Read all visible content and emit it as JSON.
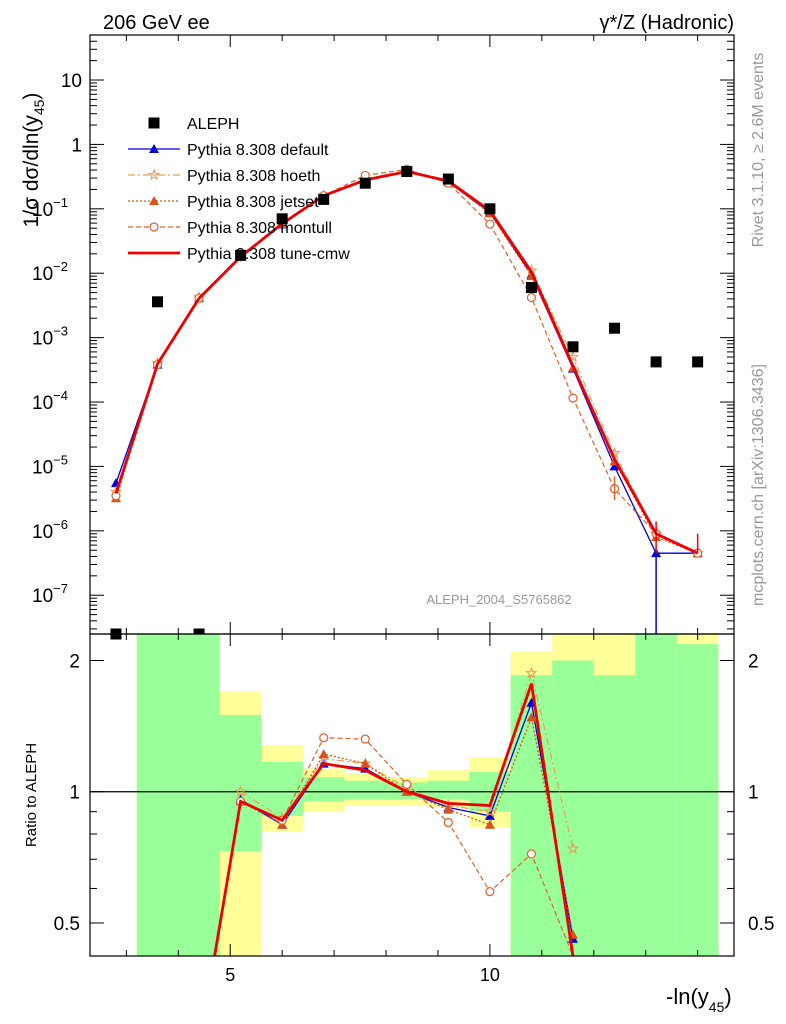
{
  "header": {
    "left": "206 GeV ee",
    "right": "γ*/Z (Hadronic)"
  },
  "watermark": "ALEPH_2004_S5765862",
  "side_labels": {
    "rivet": "Rivet 3.1.10, ≥ 2.6M events",
    "mcplots": "mcplots.cern.ch [arXiv:1306.3436]"
  },
  "chart_data": [
    {
      "type": "scatter",
      "panel": "main",
      "ylabel": "1/σ dσ/dln(y45)",
      "xlabel": "",
      "xlim": [
        2.3,
        14.7
      ],
      "ylim": [
        2.5e-08,
        50
      ],
      "yscale": "log",
      "y_ticks": [
        {
          "v": 1e-07,
          "label": "10",
          "exp": "−7"
        },
        {
          "v": 1e-06,
          "label": "10",
          "exp": "−6"
        },
        {
          "v": 1e-05,
          "label": "10",
          "exp": "−5"
        },
        {
          "v": 0.0001,
          "label": "10",
          "exp": "−4"
        },
        {
          "v": 0.001,
          "label": "10",
          "exp": "−3"
        },
        {
          "v": 0.01,
          "label": "10",
          "exp": "−2"
        },
        {
          "v": 0.1,
          "label": "10",
          "exp": "−1"
        },
        {
          "v": 1,
          "label": "1",
          "exp": ""
        },
        {
          "v": 10,
          "label": "10",
          "exp": ""
        }
      ],
      "legend_position": "top-left",
      "series": [
        {
          "name": "ALEPH",
          "color": "#000000",
          "style": "data",
          "x": [
            2.8,
            3.6,
            4.4,
            5.2,
            6.0,
            6.8,
            7.6,
            8.4,
            9.2,
            10.0,
            10.8,
            11.6,
            12.4,
            13.2,
            14.0
          ],
          "y": [
            0,
            0.0036,
            0,
            0.019,
            0.07,
            0.14,
            0.25,
            0.38,
            0.29,
            0.1,
            0.006,
            0.00072,
            0.0014,
            0.00042,
            0.00042
          ]
        },
        {
          "name": "Pythia 8.308 default",
          "color": "#0000dd",
          "style": "solid-triangle",
          "x": [
            2.8,
            3.6,
            4.4,
            5.2,
            6.0,
            6.8,
            7.6,
            8.4,
            9.2,
            10.0,
            10.8,
            11.6,
            12.4,
            13.2,
            14.0
          ],
          "y": [
            5.5e-06,
            0.00038,
            0.0041,
            0.018,
            0.057,
            0.16,
            0.28,
            0.38,
            0.26,
            0.088,
            0.0095,
            0.00033,
            1e-05,
            4.5e-07,
            4.5e-07
          ]
        },
        {
          "name": "Pythia 8.308 hoeth",
          "color": "#e69f55",
          "style": "dashdot-star",
          "x": [
            2.8,
            3.6,
            4.4,
            5.2,
            6.0,
            6.8,
            7.6,
            8.4,
            9.2,
            10.0,
            10.8,
            11.6,
            12.4,
            13.2,
            14.0
          ],
          "y": [
            4e-06,
            0.0004,
            0.0042,
            0.019,
            0.06,
            0.16,
            0.29,
            0.39,
            0.27,
            0.09,
            0.011,
            0.0005,
            1.6e-05,
            9e-07,
            4.5e-07
          ]
        },
        {
          "name": "Pythia 8.308 jetset",
          "color": "#d95319",
          "style": "dotted-triangle",
          "x": [
            2.8,
            3.6,
            4.4,
            5.2,
            6.0,
            6.8,
            7.6,
            8.4,
            9.2,
            10.0,
            10.8,
            11.6,
            12.4,
            13.2,
            14.0
          ],
          "y": [
            3.2e-06,
            0.00039,
            0.0041,
            0.018,
            0.058,
            0.16,
            0.28,
            0.38,
            0.26,
            0.085,
            0.009,
            0.00034,
            1.2e-05,
            8e-07,
            4.5e-07
          ]
        },
        {
          "name": "Pythia 8.308 montull",
          "color": "#e0602a",
          "style": "dashed-circle",
          "x": [
            2.8,
            3.6,
            4.4,
            5.2,
            6.0,
            6.8,
            7.6,
            8.4,
            9.2,
            10.0,
            10.8,
            11.6,
            12.4,
            13.2,
            14.0
          ],
          "y": [
            3.5e-06,
            0.00038,
            0.0041,
            0.018,
            0.06,
            0.16,
            0.33,
            0.41,
            0.25,
            0.058,
            0.0042,
            0.000115,
            4.5e-06,
            9e-07,
            4.5e-07
          ]
        },
        {
          "name": "Pythia 8.308 tune-cmw",
          "color": "#ee0000",
          "style": "thick-solid",
          "x": [
            2.8,
            3.6,
            4.4,
            5.2,
            6.0,
            6.8,
            7.6,
            8.4,
            9.2,
            10.0,
            10.8,
            11.6,
            12.4,
            13.2,
            14.0
          ],
          "y": [
            3.8e-06,
            0.00039,
            0.0041,
            0.018,
            0.059,
            0.16,
            0.28,
            0.38,
            0.27,
            0.093,
            0.0105,
            0.00036,
            1.3e-05,
            9e-07,
            4.5e-07
          ]
        }
      ]
    },
    {
      "type": "line",
      "panel": "ratio",
      "ylabel": "Ratio to ALEPH",
      "xlabel": "-ln(y45)",
      "xlim": [
        2.3,
        14.7
      ],
      "ylim": [
        0.42,
        2.3
      ],
      "yscale": "log",
      "x_ticks": [
        5,
        10
      ],
      "y_ticks": [
        0.5,
        1,
        2
      ],
      "uncertainty_bands": [
        {
          "x0": 3.2,
          "x1": 4.8,
          "yellow": [
            0.3,
            2.3
          ],
          "green": [
            0.3,
            2.3
          ]
        },
        {
          "x0": 4.8,
          "x1": 5.6,
          "yellow": [
            0.3,
            1.7
          ],
          "green": [
            0.73,
            1.5
          ]
        },
        {
          "x0": 5.6,
          "x1": 6.4,
          "yellow": [
            0.81,
            1.28
          ],
          "green": [
            0.88,
            1.17
          ]
        },
        {
          "x0": 6.4,
          "x1": 7.2,
          "yellow": [
            0.9,
            1.13
          ],
          "green": [
            0.95,
            1.08
          ]
        },
        {
          "x0": 7.2,
          "x1": 8.0,
          "yellow": [
            0.93,
            1.1
          ],
          "green": [
            0.96,
            1.06
          ]
        },
        {
          "x0": 8.0,
          "x1": 8.8,
          "yellow": [
            0.93,
            1.08
          ],
          "green": [
            0.96,
            1.05
          ]
        },
        {
          "x0": 8.8,
          "x1": 9.6,
          "yellow": [
            0.92,
            1.12
          ],
          "green": [
            0.96,
            1.06
          ]
        },
        {
          "x0": 9.6,
          "x1": 10.4,
          "yellow": [
            0.83,
            1.2
          ],
          "green": [
            0.9,
            1.11
          ]
        },
        {
          "x0": 10.4,
          "x1": 11.2,
          "yellow": [
            0.3,
            2.1
          ],
          "green": [
            0.3,
            1.85
          ]
        },
        {
          "x0": 11.2,
          "x1": 12.0,
          "yellow": [
            0.3,
            2.3
          ],
          "green": [
            0.3,
            2.0
          ]
        },
        {
          "x0": 12.0,
          "x1": 12.8,
          "yellow": [
            0.3,
            2.3
          ],
          "green": [
            0.3,
            1.85
          ]
        },
        {
          "x0": 12.8,
          "x1": 13.6,
          "yellow": [
            0.3,
            2.3
          ],
          "green": [
            0.3,
            2.3
          ]
        },
        {
          "x0": 13.6,
          "x1": 14.4,
          "yellow": [
            0.3,
            2.3
          ],
          "green": [
            0.3,
            2.18
          ]
        }
      ],
      "series": [
        {
          "name": "Pythia 8.308 default",
          "color": "#0000dd",
          "style": "solid-triangle",
          "x": [
            5.2,
            6.0,
            6.8,
            7.6,
            8.4,
            9.2,
            10.0,
            10.8,
            11.6
          ],
          "y": [
            0.96,
            0.84,
            1.16,
            1.13,
            1.0,
            0.92,
            0.88,
            1.6,
            0.46
          ]
        },
        {
          "name": "Pythia 8.308 hoeth",
          "color": "#e69f55",
          "style": "dashdot-star",
          "x": [
            5.2,
            6.0,
            6.8,
            7.6,
            8.4,
            9.2,
            10.0,
            10.8,
            11.6
          ],
          "y": [
            1.0,
            0.87,
            1.19,
            1.16,
            1.02,
            0.93,
            0.9,
            1.87,
            0.74
          ]
        },
        {
          "name": "Pythia 8.308 jetset",
          "color": "#d95319",
          "style": "dotted-triangle",
          "x": [
            5.2,
            6.0,
            6.8,
            7.6,
            8.4,
            9.2,
            10.0,
            10.8,
            11.6
          ],
          "y": [
            0.95,
            0.84,
            1.22,
            1.16,
            1.0,
            0.91,
            0.84,
            1.48,
            0.47
          ]
        },
        {
          "name": "Pythia 8.308 montull",
          "color": "#e0602a",
          "style": "dashed-circle",
          "x": [
            5.2,
            6.0,
            6.8,
            7.6,
            8.4,
            9.2,
            10.0,
            10.8,
            11.6
          ],
          "y": [
            0.95,
            0.86,
            1.33,
            1.32,
            1.04,
            0.85,
            0.59,
            0.72,
            0.16
          ]
        },
        {
          "name": "Pythia 8.308 tune-cmw",
          "color": "#ee0000",
          "style": "thick-solid",
          "x": [
            4.7,
            5.2,
            6.0,
            6.8,
            7.6,
            8.4,
            9.2,
            10.0,
            10.8,
            11.6
          ],
          "y": [
            0.2,
            0.95,
            0.86,
            1.16,
            1.12,
            1.0,
            0.94,
            0.93,
            1.77,
            0.4
          ]
        }
      ]
    }
  ]
}
